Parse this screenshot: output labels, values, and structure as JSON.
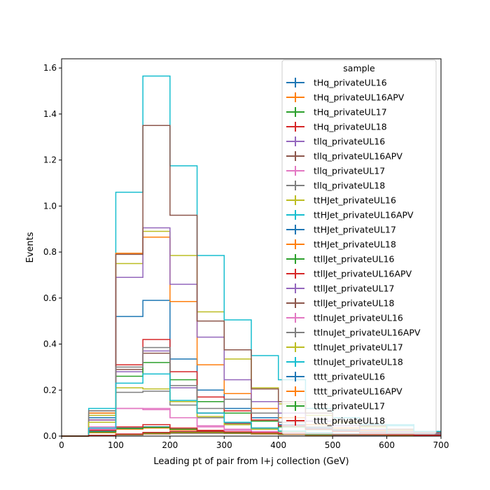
{
  "chart_data": {
    "type": "histogram-step",
    "xlabel": "Leading pt of pair from l+j collection (GeV)",
    "ylabel": "Events",
    "xlim": [
      0,
      700
    ],
    "ylim": [
      0,
      1.64
    ],
    "xticks": [
      "0",
      "100",
      "200",
      "300",
      "400",
      "500",
      "600",
      "700"
    ],
    "yticks": [
      "0.0",
      "0.2",
      "0.4",
      "0.6",
      "0.8",
      "1.0",
      "1.2",
      "1.4",
      "1.6"
    ],
    "bin_edges": [
      0,
      50,
      100,
      150,
      200,
      250,
      300,
      350,
      400,
      450,
      500,
      550,
      600,
      650,
      700
    ],
    "legend": {
      "title": "sample",
      "placement": "top-right"
    },
    "series": [
      {
        "name": "tHq_privateUL16",
        "color": "#1f77b4",
        "values": [
          0,
          0.02,
          0.035,
          0.04,
          0.03,
          0.02,
          0.015,
          0.01,
          0.007,
          0.005,
          0.003,
          0.002,
          0.001,
          0.001
        ]
      },
      {
        "name": "tHq_privateUL16APV",
        "color": "#ff7f0e",
        "values": [
          0,
          0.015,
          0.03,
          0.035,
          0.027,
          0.018,
          0.013,
          0.009,
          0.006,
          0.004,
          0.003,
          0.002,
          0.001,
          0.001
        ]
      },
      {
        "name": "tHq_privateUL17",
        "color": "#2ca02c",
        "values": [
          0,
          0.018,
          0.033,
          0.038,
          0.03,
          0.02,
          0.014,
          0.01,
          0.007,
          0.005,
          0.003,
          0.002,
          0.001,
          0.001
        ]
      },
      {
        "name": "tHq_privateUL18",
        "color": "#d62728",
        "values": [
          0,
          0.025,
          0.04,
          0.05,
          0.035,
          0.025,
          0.018,
          0.012,
          0.008,
          0.006,
          0.004,
          0.003,
          0.002,
          0.001
        ]
      },
      {
        "name": "tllq_privateUL16",
        "color": "#9467bd",
        "values": [
          0,
          0.03,
          0.28,
          0.37,
          0.21,
          0.1,
          0.055,
          0.035,
          0.02,
          0.014,
          0.01,
          0.007,
          0.005,
          0.003
        ]
      },
      {
        "name": "tllq_privateUL16APV",
        "color": "#8c564b",
        "values": [
          0,
          0.1,
          0.29,
          0.36,
          0.22,
          0.1,
          0.055,
          0.035,
          0.02,
          0.014,
          0.01,
          0.007,
          0.005,
          0.003
        ]
      },
      {
        "name": "tllq_privateUL17",
        "color": "#e377c2",
        "values": [
          0,
          0.04,
          0.12,
          0.115,
          0.08,
          0.04,
          0.025,
          0.015,
          0.01,
          0.007,
          0.005,
          0.003,
          0.002,
          0.001
        ]
      },
      {
        "name": "tllq_privateUL18",
        "color": "#7f7f7f",
        "values": [
          0,
          0.03,
          0.19,
          0.195,
          0.135,
          0.08,
          0.05,
          0.03,
          0.02,
          0.014,
          0.01,
          0.007,
          0.005,
          0.003
        ]
      },
      {
        "name": "ttHJet_privateUL16",
        "color": "#bcbd22",
        "values": [
          0,
          0.09,
          0.75,
          0.89,
          0.785,
          0.54,
          0.335,
          0.21,
          0.14,
          0.09,
          0.06,
          0.04,
          0.025,
          0.015
        ]
      },
      {
        "name": "ttHJet_privateUL16APV",
        "color": "#17becf",
        "values": [
          0,
          0.12,
          1.06,
          1.565,
          1.175,
          0.785,
          0.505,
          0.35,
          0.245,
          0.12,
          0.08,
          0.05,
          0.045,
          0.02
        ]
      },
      {
        "name": "ttHJet_privateUL17",
        "color": "#1f77b4",
        "values": [
          0,
          0.08,
          0.52,
          0.59,
          0.335,
          0.2,
          0.12,
          0.08,
          0.05,
          0.035,
          0.025,
          0.015,
          0.01,
          0.006
        ]
      },
      {
        "name": "ttHJet_privateUL18",
        "color": "#ff7f0e",
        "values": [
          0,
          0.1,
          0.795,
          0.865,
          0.585,
          0.31,
          0.185,
          0.12,
          0.08,
          0.05,
          0.035,
          0.025,
          0.015,
          0.01
        ]
      },
      {
        "name": "ttllJet_privateUL16",
        "color": "#2ca02c",
        "values": [
          0,
          0.06,
          0.26,
          0.32,
          0.245,
          0.15,
          0.1,
          0.065,
          0.04,
          0.028,
          0.02,
          0.014,
          0.01,
          0.006
        ]
      },
      {
        "name": "ttllJet_privateUL16APV",
        "color": "#d62728",
        "values": [
          0,
          0.07,
          0.31,
          0.42,
          0.28,
          0.17,
          0.11,
          0.07,
          0.045,
          0.03,
          0.02,
          0.014,
          0.01,
          0.006
        ]
      },
      {
        "name": "ttllJet_privateUL17",
        "color": "#9467bd",
        "values": [
          0,
          0.07,
          0.69,
          0.905,
          0.66,
          0.43,
          0.245,
          0.15,
          0.1,
          0.065,
          0.045,
          0.03,
          0.02,
          0.012
        ]
      },
      {
        "name": "ttllJet_privateUL18",
        "color": "#8c564b",
        "values": [
          0,
          0.11,
          0.79,
          1.35,
          0.96,
          0.5,
          0.375,
          0.205,
          0.15,
          0.1,
          0.065,
          0.045,
          0.03,
          0.018
        ]
      },
      {
        "name": "ttlnuJet_privateUL16",
        "color": "#e377c2",
        "values": [
          0,
          0.03,
          0.12,
          0.12,
          0.08,
          0.045,
          0.03,
          0.02,
          0.013,
          0.009,
          0.006,
          0.004,
          0.003,
          0.002
        ]
      },
      {
        "name": "ttlnuJet_privateUL16APV",
        "color": "#7f7f7f",
        "values": [
          0,
          0.11,
          0.3,
          0.385,
          0.22,
          0.12,
          0.16,
          0.1,
          0.06,
          0.04,
          0.028,
          0.02,
          0.014,
          0.008
        ]
      },
      {
        "name": "ttlnuJet_privateUL17",
        "color": "#bcbd22",
        "values": [
          0,
          0.06,
          0.21,
          0.205,
          0.15,
          0.085,
          0.05,
          0.03,
          0.02,
          0.014,
          0.01,
          0.007,
          0.005,
          0.003
        ]
      },
      {
        "name": "ttlnuJet_privateUL18",
        "color": "#17becf",
        "values": [
          0,
          0.035,
          0.23,
          0.27,
          0.155,
          0.1,
          0.06,
          0.035,
          0.022,
          0.015,
          0.01,
          0.007,
          0.05,
          0.02
        ]
      },
      {
        "name": "tttt_privateUL16",
        "color": "#1f77b4",
        "values": [
          0,
          0.002,
          0.005,
          0.009,
          0.012,
          0.012,
          0.011,
          0.009,
          0.007,
          0.006,
          0.005,
          0.004,
          0.003,
          0.002
        ]
      },
      {
        "name": "tttt_privateUL16APV",
        "color": "#ff7f0e",
        "values": [
          0,
          0.002,
          0.006,
          0.01,
          0.014,
          0.014,
          0.012,
          0.01,
          0.008,
          0.007,
          0.006,
          0.005,
          0.004,
          0.003
        ]
      },
      {
        "name": "tttt_privateUL17",
        "color": "#2ca02c",
        "values": [
          0,
          0.003,
          0.008,
          0.013,
          0.017,
          0.017,
          0.015,
          0.013,
          0.01,
          0.008,
          0.007,
          0.006,
          0.005,
          0.004
        ]
      },
      {
        "name": "tttt_privateUL18",
        "color": "#d62728",
        "values": [
          0,
          0.003,
          0.009,
          0.016,
          0.02,
          0.02,
          0.018,
          0.015,
          0.012,
          0.01,
          0.008,
          0.007,
          0.006,
          0.004
        ]
      }
    ]
  }
}
